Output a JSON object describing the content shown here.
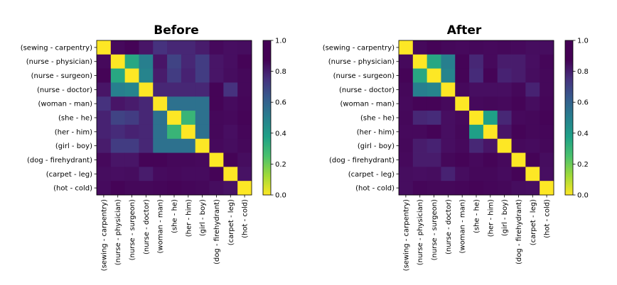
{
  "chart_data": [
    {
      "type": "heatmap",
      "title": "Before",
      "rows": [
        "(sewing - carpentry)",
        "(nurse - physician)",
        "(nurse - surgeon)",
        "(nurse - doctor)",
        "(woman - man)",
        "(she - he)",
        "(her - him)",
        "(girl - boy)",
        "(dog - firehydrant)",
        "(carpet - leg)",
        "(hot - cold)"
      ],
      "columns": [
        "(sewing - carpentry)",
        "(nurse - physician)",
        "(nurse - surgeon)",
        "(nurse - doctor)",
        "(woman - man)",
        "(she - he)",
        "(her - him)",
        "(girl - boy)",
        "(dog - firehydrant)",
        "(carpet - leg)",
        "(hot - cold)"
      ],
      "colorbar": {
        "min": 0.0,
        "max": 1.0,
        "ticks": [
          "0.0",
          "0.2",
          "0.4",
          "0.6",
          "0.8",
          "1.0"
        ],
        "colormap": "viridis_r"
      },
      "values": [
        [
          0.0,
          0.95,
          0.98,
          0.88,
          0.75,
          0.8,
          0.8,
          0.85,
          0.95,
          0.92,
          0.93
        ],
        [
          0.95,
          0.0,
          0.35,
          0.5,
          0.88,
          0.7,
          0.8,
          0.72,
          0.88,
          0.92,
          0.98
        ],
        [
          0.98,
          0.35,
          0.0,
          0.48,
          0.85,
          0.72,
          0.82,
          0.72,
          0.88,
          0.93,
          0.96
        ],
        [
          0.88,
          0.5,
          0.48,
          0.0,
          0.8,
          0.8,
          0.8,
          0.8,
          0.98,
          0.75,
          0.96
        ],
        [
          0.75,
          0.88,
          0.85,
          0.8,
          0.0,
          0.55,
          0.55,
          0.55,
          0.98,
          0.94,
          0.97
        ],
        [
          0.82,
          0.7,
          0.72,
          0.8,
          0.55,
          0.0,
          0.3,
          0.55,
          0.96,
          0.95,
          0.98
        ],
        [
          0.82,
          0.78,
          0.82,
          0.8,
          0.55,
          0.3,
          0.0,
          0.55,
          0.96,
          0.92,
          0.97
        ],
        [
          0.85,
          0.72,
          0.72,
          0.8,
          0.55,
          0.55,
          0.55,
          0.0,
          0.95,
          0.93,
          0.96
        ],
        [
          0.95,
          0.88,
          0.88,
          0.98,
          0.98,
          0.96,
          0.96,
          0.95,
          0.0,
          0.98,
          0.93
        ],
        [
          0.93,
          0.92,
          0.93,
          0.85,
          0.94,
          0.95,
          0.94,
          0.94,
          0.98,
          0.0,
          0.9
        ],
        [
          0.94,
          0.98,
          0.96,
          0.96,
          0.97,
          0.98,
          0.97,
          0.96,
          0.93,
          0.9,
          0.0
        ]
      ]
    },
    {
      "type": "heatmap",
      "title": "After",
      "rows": [
        "(sewing - carpentry)",
        "(nurse - physician)",
        "(nurse - surgeon)",
        "(nurse - doctor)",
        "(woman - man)",
        "(she - he)",
        "(her - him)",
        "(girl - boy)",
        "(dog - firehydrant)",
        "(carpet - leg)",
        "(hot - cold)"
      ],
      "columns": [
        "(sewing - carpentry)",
        "(nurse - physician)",
        "(nurse - surgeon)",
        "(nurse - doctor)",
        "(woman - man)",
        "(she - he)",
        "(her - him)",
        "(girl - boy)",
        "(dog - firehydrant)",
        "(carpet - leg)",
        "(hot - cold)"
      ],
      "colorbar": {
        "min": 0.0,
        "max": 1.0,
        "ticks": [
          "0.0",
          "0.2",
          "0.4",
          "0.6",
          "0.8",
          "1.0"
        ],
        "colormap": "viridis_r"
      },
      "values": [
        [
          0.0,
          0.95,
          0.98,
          0.96,
          0.95,
          0.96,
          0.95,
          0.96,
          0.95,
          0.93,
          0.93
        ],
        [
          0.95,
          0.0,
          0.35,
          0.5,
          0.98,
          0.8,
          0.95,
          0.85,
          0.85,
          0.92,
          0.97
        ],
        [
          0.98,
          0.35,
          0.0,
          0.48,
          0.98,
          0.78,
          0.98,
          0.82,
          0.85,
          0.93,
          0.96
        ],
        [
          0.96,
          0.5,
          0.48,
          0.0,
          0.95,
          0.92,
          0.92,
          0.92,
          0.96,
          0.82,
          0.96
        ],
        [
          0.95,
          0.98,
          0.98,
          0.95,
          0.0,
          0.95,
          0.96,
          0.95,
          0.98,
          0.93,
          0.97
        ],
        [
          0.96,
          0.8,
          0.78,
          0.92,
          0.95,
          0.0,
          0.38,
          0.8,
          0.95,
          0.96,
          0.98
        ],
        [
          0.95,
          0.95,
          0.98,
          0.92,
          0.96,
          0.38,
          0.0,
          0.88,
          0.98,
          0.96,
          0.97
        ],
        [
          0.96,
          0.85,
          0.82,
          0.92,
          0.95,
          0.8,
          0.88,
          0.0,
          0.95,
          0.94,
          0.96
        ],
        [
          0.95,
          0.85,
          0.85,
          0.96,
          0.98,
          0.95,
          0.98,
          0.95,
          0.0,
          0.98,
          0.93
        ],
        [
          0.93,
          0.92,
          0.93,
          0.82,
          0.93,
          0.96,
          0.96,
          0.94,
          0.98,
          0.0,
          0.92
        ],
        [
          0.93,
          0.97,
          0.96,
          0.96,
          0.97,
          0.98,
          0.97,
          0.96,
          0.93,
          0.92,
          0.0
        ]
      ]
    }
  ]
}
